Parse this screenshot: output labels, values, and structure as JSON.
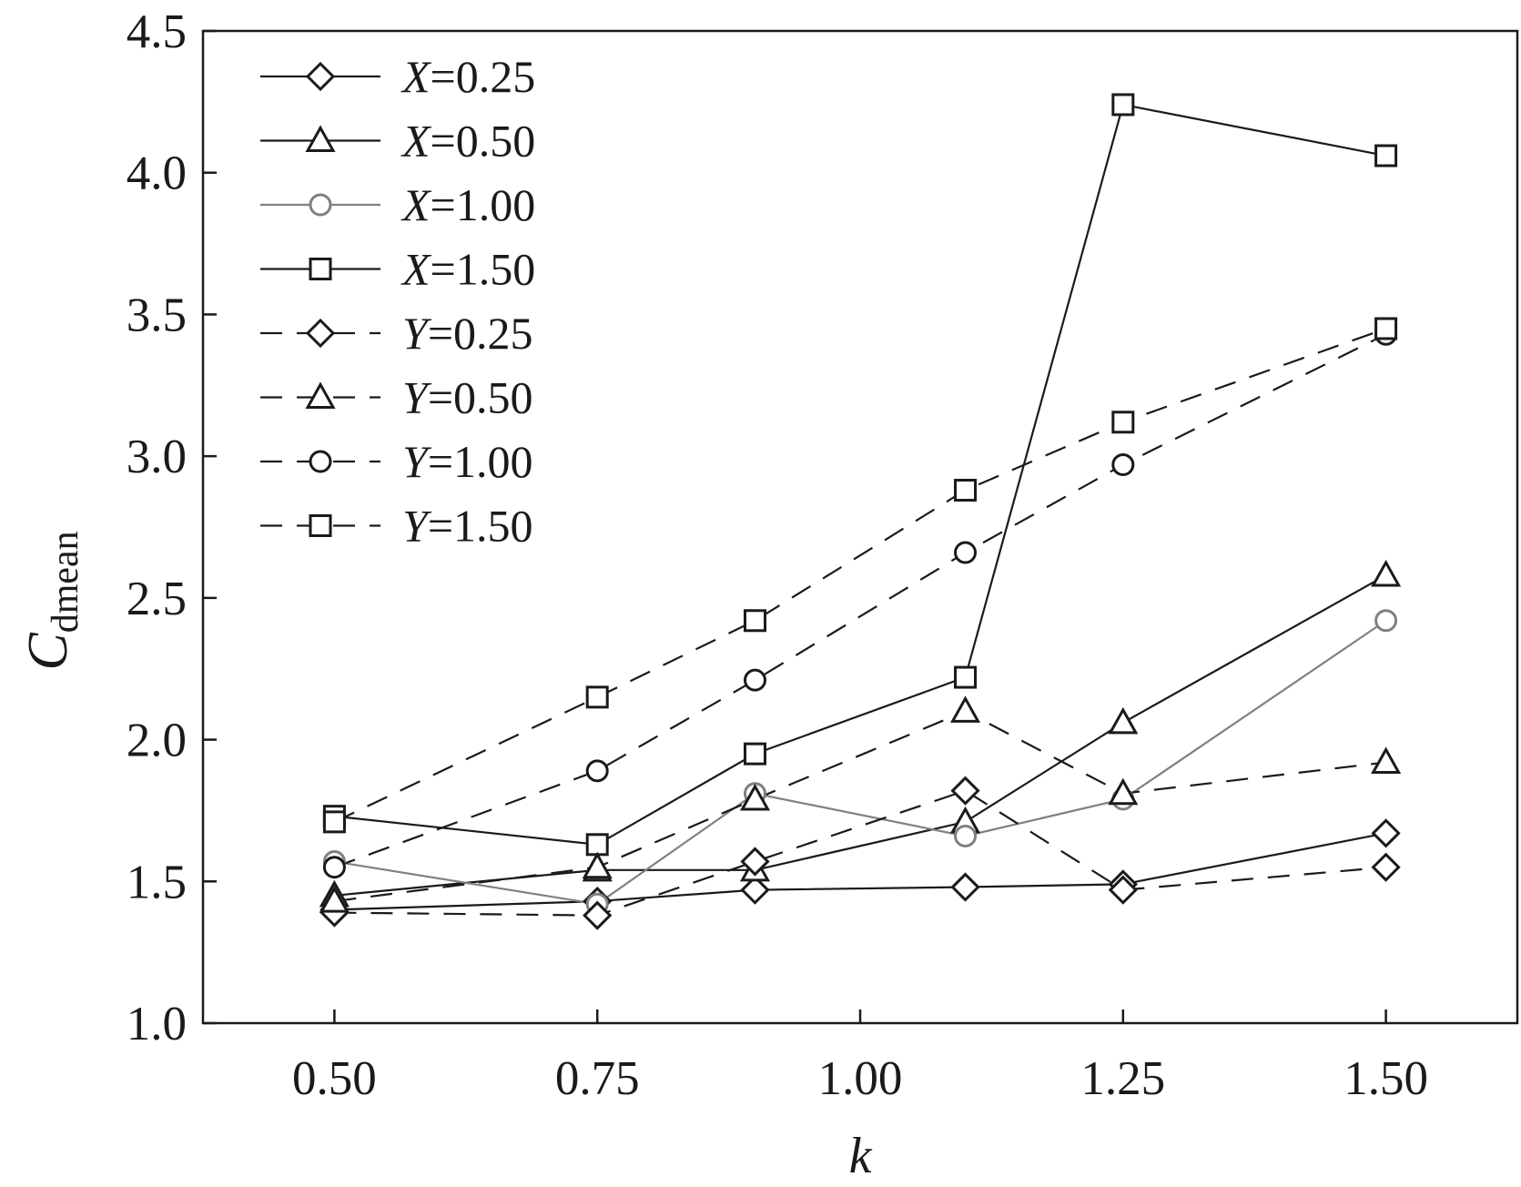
{
  "chart_data": {
    "type": "line",
    "xlabel": "k",
    "ylabel": "C",
    "ylabel_sub": "dmean",
    "xlim": [
      0.375,
      1.625
    ],
    "ylim": [
      1.0,
      4.5
    ],
    "x_ticks": [
      "0.50",
      "0.75",
      "1.00",
      "1.25",
      "1.50"
    ],
    "y_ticks": [
      "1.0",
      "1.5",
      "2.0",
      "2.5",
      "3.0",
      "3.5",
      "4.0",
      "4.5"
    ],
    "x": [
      0.5,
      0.75,
      0.9,
      1.1,
      1.25,
      1.5
    ],
    "grid": false,
    "legend_position": "top-left",
    "series": [
      {
        "name": "X=0.25",
        "var": "X",
        "val": "=0.25",
        "marker": "diamond",
        "dash": "solid",
        "color": "#1a1a1a",
        "values": [
          1.4,
          1.43,
          1.47,
          1.48,
          1.49,
          1.67
        ]
      },
      {
        "name": "X=0.50",
        "var": "X",
        "val": "=0.50",
        "marker": "triangle",
        "dash": "solid",
        "color": "#1a1a1a",
        "values": [
          1.45,
          1.54,
          1.54,
          1.71,
          2.06,
          2.58
        ]
      },
      {
        "name": "X=1.00",
        "var": "X",
        "val": "=1.00",
        "marker": "circle",
        "dash": "solid",
        "color": "#808080",
        "values": [
          1.57,
          1.42,
          1.81,
          1.66,
          1.79,
          2.42
        ]
      },
      {
        "name": "X=1.50",
        "var": "X",
        "val": "=1.50",
        "marker": "square",
        "dash": "solid",
        "color": "#1a1a1a",
        "values": [
          1.73,
          1.63,
          1.95,
          2.22,
          4.24,
          4.06
        ]
      },
      {
        "name": "Y=0.25",
        "var": "Y",
        "val": "=0.25",
        "marker": "diamond",
        "dash": "dashed",
        "color": "#1a1a1a",
        "values": [
          1.39,
          1.38,
          1.57,
          1.82,
          1.47,
          1.55
        ]
      },
      {
        "name": "Y=0.50",
        "var": "Y",
        "val": "=0.50",
        "marker": "triangle",
        "dash": "dashed",
        "color": "#1a1a1a",
        "values": [
          1.43,
          1.55,
          1.79,
          2.1,
          1.81,
          1.92
        ]
      },
      {
        "name": "Y=1.00",
        "var": "Y",
        "val": "=1.00",
        "marker": "circle",
        "dash": "dashed",
        "color": "#1a1a1a",
        "values": [
          1.55,
          1.89,
          2.21,
          2.66,
          2.97,
          3.43
        ]
      },
      {
        "name": "Y=1.50",
        "var": "Y",
        "val": "=1.50",
        "marker": "square",
        "dash": "dashed",
        "color": "#1a1a1a",
        "values": [
          1.71,
          2.15,
          2.42,
          2.88,
          3.12,
          3.45
        ]
      }
    ]
  }
}
